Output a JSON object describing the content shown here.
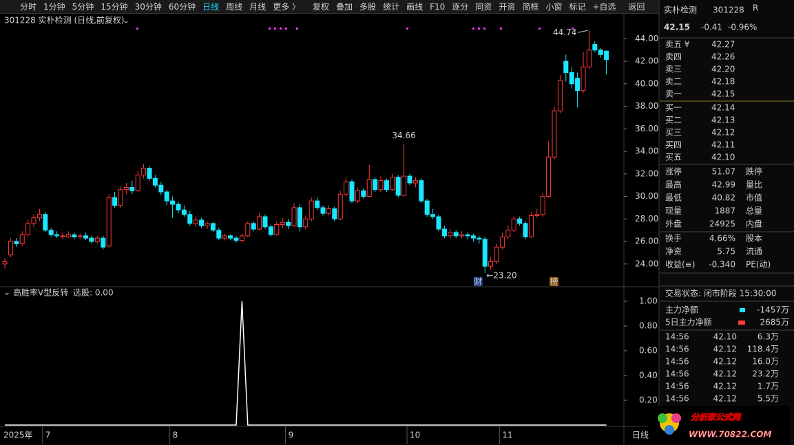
{
  "toolbar": [
    "分时",
    "1分钟",
    "5分钟",
    "15分钟",
    "30分钟",
    "60分钟",
    "日线",
    "周线",
    "月线",
    "更多 〉",
    "复权",
    "叠加",
    "多股",
    "统计",
    "画线",
    "F10",
    "逐分",
    "同资",
    "开资",
    "简框",
    "小窗",
    "标记",
    "+自选",
    "返回"
  ],
  "chart_data": [
    {
      "type": "candlestick",
      "title": "301228 实朴检测 (日线,前复权)",
      "year_label": "2025年",
      "period_label": "日线",
      "up_color": "#ff3b3b",
      "down_color": "#19e6ff",
      "categories": [
        null,
        null,
        null,
        null,
        null,
        null,
        null,
        "7",
        null,
        null,
        null,
        null,
        null,
        null,
        null,
        null,
        null,
        null,
        null,
        null,
        null,
        null,
        null,
        null,
        null,
        null,
        null,
        null,
        null,
        "8",
        null,
        null,
        null,
        null,
        null,
        null,
        null,
        null,
        null,
        null,
        null,
        null,
        null,
        null,
        null,
        null,
        null,
        null,
        null,
        "9",
        null,
        null,
        null,
        null,
        null,
        null,
        null,
        null,
        null,
        null,
        null,
        null,
        null,
        null,
        null,
        null,
        null,
        null,
        null,
        null,
        "10",
        null,
        null,
        null,
        null,
        null,
        null,
        null,
        null,
        null,
        null,
        null,
        null,
        null,
        null,
        null,
        "11",
        null,
        null,
        null,
        null,
        null,
        null,
        null,
        null,
        null,
        null,
        null,
        null,
        null,
        null,
        null,
        null,
        null,
        null
      ],
      "ohlc": [
        [
          24.0,
          24.5,
          23.6,
          24.2
        ],
        [
          24.8,
          26.3,
          24.6,
          26.0
        ],
        [
          26.0,
          26.3,
          25.5,
          25.8
        ],
        [
          25.8,
          26.9,
          25.6,
          26.6
        ],
        [
          26.6,
          27.9,
          26.4,
          27.6
        ],
        [
          27.6,
          28.4,
          27.3,
          28.1
        ],
        [
          28.1,
          28.9,
          27.8,
          28.4
        ],
        [
          28.4,
          28.6,
          26.8,
          27.0
        ],
        [
          27.0,
          27.2,
          26.4,
          26.6
        ],
        [
          26.6,
          26.9,
          26.3,
          26.5
        ],
        [
          26.5,
          26.8,
          26.2,
          26.5
        ],
        [
          26.4,
          26.9,
          26.3,
          26.6
        ],
        [
          26.6,
          26.8,
          26.2,
          26.4
        ],
        [
          26.4,
          26.7,
          26.2,
          26.5
        ],
        [
          26.5,
          26.8,
          26.1,
          26.3
        ],
        [
          26.3,
          26.5,
          25.8,
          26.0
        ],
        [
          26.0,
          26.5,
          25.8,
          26.3
        ],
        [
          26.3,
          26.5,
          25.3,
          25.5
        ],
        [
          25.6,
          30.2,
          25.4,
          29.9
        ],
        [
          29.9,
          30.4,
          29.0,
          29.2
        ],
        [
          29.2,
          30.9,
          29.0,
          30.6
        ],
        [
          30.6,
          31.2,
          30.2,
          30.8
        ],
        [
          30.8,
          31.4,
          30.2,
          30.5
        ],
        [
          30.5,
          32.3,
          30.4,
          31.9
        ],
        [
          31.9,
          32.9,
          31.6,
          32.5
        ],
        [
          32.5,
          32.7,
          31.4,
          31.6
        ],
        [
          31.6,
          31.9,
          30.8,
          31.0
        ],
        [
          31.0,
          31.3,
          30.1,
          30.4
        ],
        [
          30.4,
          30.6,
          29.2,
          29.6
        ],
        [
          29.6,
          30.0,
          28.1,
          29.3
        ],
        [
          29.3,
          29.5,
          28.5,
          28.8
        ],
        [
          28.8,
          29.2,
          28.2,
          28.4
        ],
        [
          28.4,
          28.7,
          27.4,
          27.6
        ],
        [
          27.6,
          28.2,
          27.3,
          27.9
        ],
        [
          27.9,
          28.1,
          27.2,
          27.4
        ],
        [
          27.4,
          27.8,
          27.1,
          27.6
        ],
        [
          27.6,
          27.7,
          26.8,
          27.0
        ],
        [
          27.0,
          27.2,
          26.1,
          26.3
        ],
        [
          26.3,
          26.7,
          26.1,
          26.5
        ],
        [
          26.5,
          26.6,
          26.1,
          26.3
        ],
        [
          26.3,
          26.5,
          25.9,
          26.1
        ],
        [
          26.1,
          26.7,
          25.9,
          26.5
        ],
        [
          26.5,
          27.8,
          26.4,
          27.6
        ],
        [
          27.6,
          27.8,
          26.9,
          27.1
        ],
        [
          27.1,
          28.5,
          27.0,
          28.2
        ],
        [
          28.2,
          28.4,
          27.1,
          27.3
        ],
        [
          27.3,
          27.5,
          26.4,
          26.6
        ],
        [
          26.6,
          27.8,
          26.5,
          27.5
        ],
        [
          27.5,
          28.1,
          27.2,
          27.7
        ],
        [
          27.7,
          28.0,
          27.1,
          27.4
        ],
        [
          27.4,
          29.4,
          27.3,
          29.0
        ],
        [
          29.0,
          29.3,
          26.9,
          27.3
        ],
        [
          27.3,
          28.3,
          27.1,
          28.0
        ],
        [
          28.0,
          29.9,
          27.8,
          29.6
        ],
        [
          29.6,
          29.9,
          28.8,
          29.0
        ],
        [
          29.0,
          29.2,
          28.3,
          28.5
        ],
        [
          28.5,
          29.2,
          28.3,
          28.9
        ],
        [
          28.9,
          29.1,
          27.8,
          28.0
        ],
        [
          28.0,
          30.5,
          27.9,
          30.2
        ],
        [
          30.2,
          31.7,
          30.0,
          31.3
        ],
        [
          31.3,
          31.5,
          29.4,
          29.6
        ],
        [
          29.6,
          30.8,
          29.4,
          30.5
        ],
        [
          30.5,
          30.7,
          29.8,
          30.0
        ],
        [
          30.0,
          32.8,
          29.9,
          31.5
        ],
        [
          31.5,
          31.7,
          30.4,
          30.6
        ],
        [
          30.6,
          31.8,
          30.4,
          31.4
        ],
        [
          31.4,
          31.6,
          30.4,
          30.6
        ],
        [
          30.6,
          32.0,
          30.5,
          31.7
        ],
        [
          31.7,
          31.9,
          29.9,
          30.1
        ],
        [
          30.1,
          34.66,
          30.0,
          31.8
        ],
        [
          31.8,
          32.0,
          31.0,
          31.2
        ],
        [
          31.2,
          31.7,
          30.8,
          31.4
        ],
        [
          31.4,
          31.6,
          29.4,
          29.6
        ],
        [
          29.6,
          29.8,
          28.2,
          28.4
        ],
        [
          28.4,
          28.9,
          28.0,
          28.2
        ],
        [
          28.2,
          28.4,
          26.9,
          27.1
        ],
        [
          27.1,
          27.4,
          26.3,
          26.5
        ],
        [
          26.5,
          27.1,
          26.3,
          26.8
        ],
        [
          26.8,
          27.0,
          26.3,
          26.5
        ],
        [
          26.5,
          26.9,
          26.3,
          26.6
        ],
        [
          26.6,
          26.8,
          26.2,
          26.5
        ],
        [
          26.5,
          26.7,
          26.0,
          26.3
        ],
        [
          26.3,
          26.5,
          25.8,
          26.2
        ],
        [
          26.2,
          26.4,
          23.2,
          23.8
        ],
        [
          23.8,
          24.6,
          23.5,
          24.2
        ],
        [
          24.2,
          25.8,
          24.0,
          25.5
        ],
        [
          25.5,
          26.8,
          25.3,
          26.4
        ],
        [
          26.4,
          27.4,
          26.2,
          27.0
        ],
        [
          27.0,
          28.3,
          26.8,
          28.0
        ],
        [
          28.0,
          28.2,
          27.4,
          27.6
        ],
        [
          27.6,
          27.8,
          26.2,
          26.4
        ],
        [
          26.4,
          28.6,
          26.3,
          28.3
        ],
        [
          28.3,
          28.9,
          28.1,
          28.4
        ],
        [
          28.4,
          30.3,
          28.2,
          30.0
        ],
        [
          30.0,
          34.9,
          29.9,
          33.5
        ],
        [
          33.5,
          38.0,
          33.3,
          37.6
        ],
        [
          37.6,
          40.8,
          37.4,
          40.3
        ],
        [
          42.0,
          42.6,
          40.2,
          41.0
        ],
        [
          41.0,
          41.5,
          39.6,
          40.0
        ],
        [
          40.5,
          41.0,
          37.9,
          39.4
        ],
        [
          39.4,
          42.8,
          39.2,
          41.5
        ],
        [
          41.5,
          44.74,
          41.3,
          43.0
        ],
        [
          43.5,
          43.8,
          42.8,
          43.0
        ],
        [
          43.0,
          43.2,
          42.3,
          42.6
        ],
        [
          42.9,
          42.99,
          40.82,
          42.15
        ]
      ],
      "low_label": "←23.20",
      "markers": [
        "财",
        "榜"
      ],
      "ylim": [
        22.4,
        45.0
      ],
      "yticks": [
        {
          "value": 24,
          "label": "24.00"
        },
        {
          "value": 26,
          "label": "26.00"
        },
        {
          "value": 28,
          "label": "28.00"
        },
        {
          "value": 30,
          "label": "30.00"
        },
        {
          "value": 32,
          "label": "32.00"
        },
        {
          "value": 34,
          "label": "34.00"
        },
        {
          "value": 36,
          "label": "36.00"
        },
        {
          "value": 38,
          "label": "38.00"
        },
        {
          "value": 40,
          "label": "40.00"
        },
        {
          "value": 42,
          "label": "42.00"
        },
        {
          "value": 44,
          "label": "44.00"
        }
      ]
    },
    {
      "type": "line",
      "title": "高胜率V型反转",
      "subtitle": "选股: 0.00",
      "color": "#ffffff",
      "values": [
        0,
        0,
        0,
        0,
        0,
        0,
        0,
        0,
        0,
        0,
        0,
        0,
        0,
        0,
        0,
        0,
        0,
        0,
        0,
        0,
        0,
        0,
        0,
        0,
        0,
        0,
        0,
        0,
        0,
        0,
        0,
        0,
        0,
        0,
        0,
        0,
        0,
        0,
        0,
        0,
        0,
        1,
        0,
        0,
        0,
        0,
        0,
        0,
        0,
        0,
        0,
        0,
        0,
        0,
        0,
        0,
        0,
        0,
        0,
        0,
        0,
        0,
        0,
        0,
        0,
        0,
        0,
        0,
        0,
        0,
        0,
        0,
        0,
        0,
        0,
        0,
        0,
        0,
        0,
        0,
        0,
        0,
        0,
        0,
        0,
        0,
        0,
        0,
        0,
        0,
        0,
        0,
        0,
        0,
        0,
        0,
        0,
        0,
        0,
        0,
        0,
        0,
        0,
        0,
        0
      ],
      "ylim": [
        0,
        1.1
      ],
      "yticks": [
        {
          "value": 0.2,
          "label": "0.20"
        },
        {
          "value": 0.4,
          "label": "0.40"
        },
        {
          "value": 0.6,
          "label": "0.60"
        },
        {
          "value": 0.8,
          "label": "0.80"
        },
        {
          "value": 1,
          "label": "1.00"
        }
      ]
    }
  ],
  "sidebar": {
    "quote": {
      "name": "实朴检测",
      "code": "301228",
      "badge": "R",
      "price": "42.15",
      "change": "-0.41",
      "pct": "-0.96%"
    },
    "sell": [
      {
        "label": "卖五 ¥",
        "price": "42.27"
      },
      {
        "label": "卖四",
        "price": "42.26"
      },
      {
        "label": "卖三",
        "price": "42.20"
      },
      {
        "label": "卖二",
        "price": "42.18"
      },
      {
        "label": "卖一",
        "price": "42.15"
      }
    ],
    "buy": [
      {
        "label": "买一",
        "price": "42.14"
      },
      {
        "label": "买二",
        "price": "42.13"
      },
      {
        "label": "买三",
        "price": "42.12"
      },
      {
        "label": "买四",
        "price": "42.11"
      },
      {
        "label": "买五",
        "price": "42.10"
      }
    ],
    "stats": [
      [
        "涨停",
        "51.07",
        "跌停"
      ],
      [
        "最高",
        "42.99",
        "量比"
      ],
      [
        "最低",
        "40.82",
        "市值"
      ],
      [
        "现量",
        "1887",
        "总量"
      ],
      [
        "外盘",
        "24925",
        "内盘"
      ],
      [
        "换手",
        "4.66%",
        "股本"
      ],
      [
        "净资",
        "5.75",
        "流通"
      ],
      [
        "收益(≡)",
        "-0.340",
        "PE(动)"
      ]
    ],
    "status": "交易状态: 闭市阶段 15:30:00",
    "flows": [
      {
        "label": "主力净额",
        "value": "-1457万"
      },
      {
        "label": "5日主力净额",
        "value": "2685万"
      }
    ],
    "trades": [
      [
        "14:56",
        "42.10",
        "6.3万"
      ],
      [
        "14:56",
        "42.12",
        "118.4万"
      ],
      [
        "14:56",
        "42.12",
        "16.0万"
      ],
      [
        "14:56",
        "42.12",
        "23.2万"
      ],
      [
        "14:56",
        "42.12",
        "1.7万"
      ],
      [
        "14:56",
        "42.12",
        "5.5万"
      ]
    ]
  },
  "watermark": {
    "title": "分析家公式网",
    "url": "WWW.70822.COM"
  }
}
